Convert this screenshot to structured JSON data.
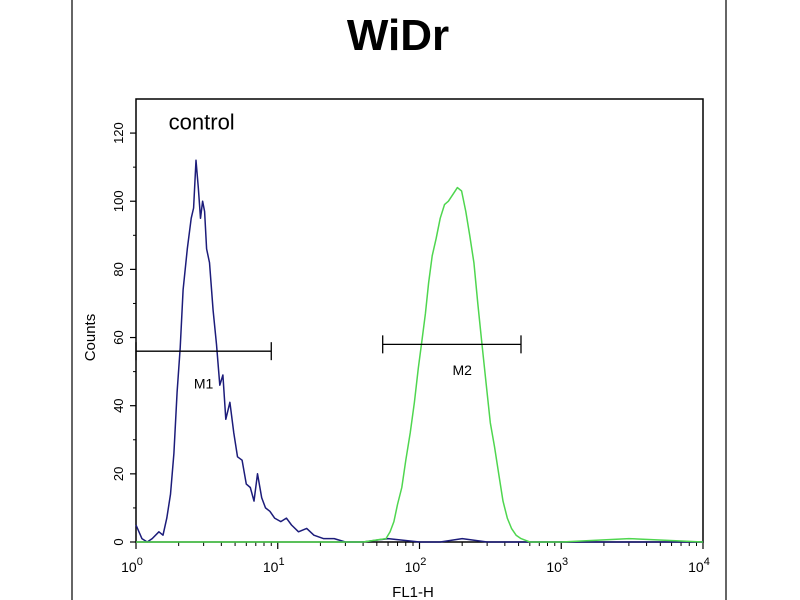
{
  "chart_data": {
    "type": "line",
    "title": "WiDr",
    "xlabel": "FL1-H",
    "ylabel": "Counts",
    "x_scale": "log",
    "xlim": [
      1,
      10000
    ],
    "ylim": [
      0,
      130
    ],
    "x_ticks": [
      {
        "value": 1,
        "base": "10",
        "exp": "0"
      },
      {
        "value": 10,
        "base": "10",
        "exp": "1"
      },
      {
        "value": 100,
        "base": "10",
        "exp": "2"
      },
      {
        "value": 1000,
        "base": "10",
        "exp": "3"
      },
      {
        "value": 10000,
        "base": "10",
        "exp": "4"
      }
    ],
    "y_ticks": [
      0,
      20,
      40,
      60,
      80,
      100,
      120
    ],
    "grid": false,
    "annotations": [
      {
        "text": "control",
        "x": 1.7,
        "y": 121
      }
    ],
    "markers": [
      {
        "label": "M1",
        "x_start": 1.0,
        "x_end": 9.0,
        "y": 56,
        "label_x": 3.0,
        "label_y": 45
      },
      {
        "label": "M2",
        "x_start": 55,
        "x_end": 520,
        "y": 58,
        "label_x": 200,
        "label_y": 49
      }
    ],
    "series": [
      {
        "name": "control",
        "color": "#1c1c7a",
        "points": [
          [
            1.0,
            5
          ],
          [
            1.1,
            1
          ],
          [
            1.2,
            0
          ],
          [
            1.3,
            1
          ],
          [
            1.45,
            3
          ],
          [
            1.55,
            2
          ],
          [
            1.65,
            7
          ],
          [
            1.75,
            14
          ],
          [
            1.85,
            26
          ],
          [
            1.95,
            44
          ],
          [
            2.05,
            57
          ],
          [
            2.15,
            74
          ],
          [
            2.3,
            86
          ],
          [
            2.45,
            95
          ],
          [
            2.55,
            98
          ],
          [
            2.65,
            112
          ],
          [
            2.75,
            104
          ],
          [
            2.85,
            95
          ],
          [
            2.95,
            100
          ],
          [
            3.05,
            97
          ],
          [
            3.15,
            86
          ],
          [
            3.3,
            82
          ],
          [
            3.5,
            68
          ],
          [
            3.7,
            58
          ],
          [
            3.9,
            46
          ],
          [
            4.1,
            49
          ],
          [
            4.3,
            36
          ],
          [
            4.6,
            41
          ],
          [
            4.9,
            32
          ],
          [
            5.2,
            25
          ],
          [
            5.6,
            24
          ],
          [
            6.0,
            17
          ],
          [
            6.4,
            16
          ],
          [
            6.8,
            12
          ],
          [
            7.2,
            20
          ],
          [
            7.7,
            13
          ],
          [
            8.2,
            10
          ],
          [
            8.8,
            9
          ],
          [
            9.5,
            7
          ],
          [
            10.5,
            6
          ],
          [
            11.5,
            7
          ],
          [
            12.5,
            5
          ],
          [
            14,
            3
          ],
          [
            16,
            4
          ],
          [
            18,
            2
          ],
          [
            21,
            1
          ],
          [
            25,
            1
          ],
          [
            30,
            0
          ],
          [
            40,
            0
          ],
          [
            60,
            1
          ],
          [
            100,
            0
          ],
          [
            140,
            0
          ],
          [
            200,
            1
          ],
          [
            300,
            0
          ],
          [
            1000,
            0
          ],
          [
            10000,
            0
          ]
        ]
      },
      {
        "name": "",
        "color": "#4fd64f",
        "points": [
          [
            1.0,
            0
          ],
          [
            5,
            0
          ],
          [
            20,
            0
          ],
          [
            40,
            0
          ],
          [
            58,
            1
          ],
          [
            62,
            3
          ],
          [
            66,
            6
          ],
          [
            70,
            11
          ],
          [
            75,
            16
          ],
          [
            80,
            24
          ],
          [
            86,
            32
          ],
          [
            92,
            41
          ],
          [
            98,
            51
          ],
          [
            104,
            59
          ],
          [
            110,
            67
          ],
          [
            116,
            76
          ],
          [
            123,
            84
          ],
          [
            131,
            89
          ],
          [
            140,
            95
          ],
          [
            150,
            99
          ],
          [
            160,
            100
          ],
          [
            172,
            102
          ],
          [
            185,
            104
          ],
          [
            198,
            103
          ],
          [
            212,
            97
          ],
          [
            226,
            90
          ],
          [
            242,
            82
          ],
          [
            258,
            70
          ],
          [
            276,
            58
          ],
          [
            296,
            46
          ],
          [
            316,
            35
          ],
          [
            338,
            28
          ],
          [
            362,
            20
          ],
          [
            388,
            12
          ],
          [
            416,
            7
          ],
          [
            446,
            4
          ],
          [
            480,
            2
          ],
          [
            520,
            1
          ],
          [
            600,
            0
          ],
          [
            1000,
            0
          ],
          [
            3000,
            1
          ],
          [
            10000,
            0
          ]
        ]
      }
    ]
  }
}
